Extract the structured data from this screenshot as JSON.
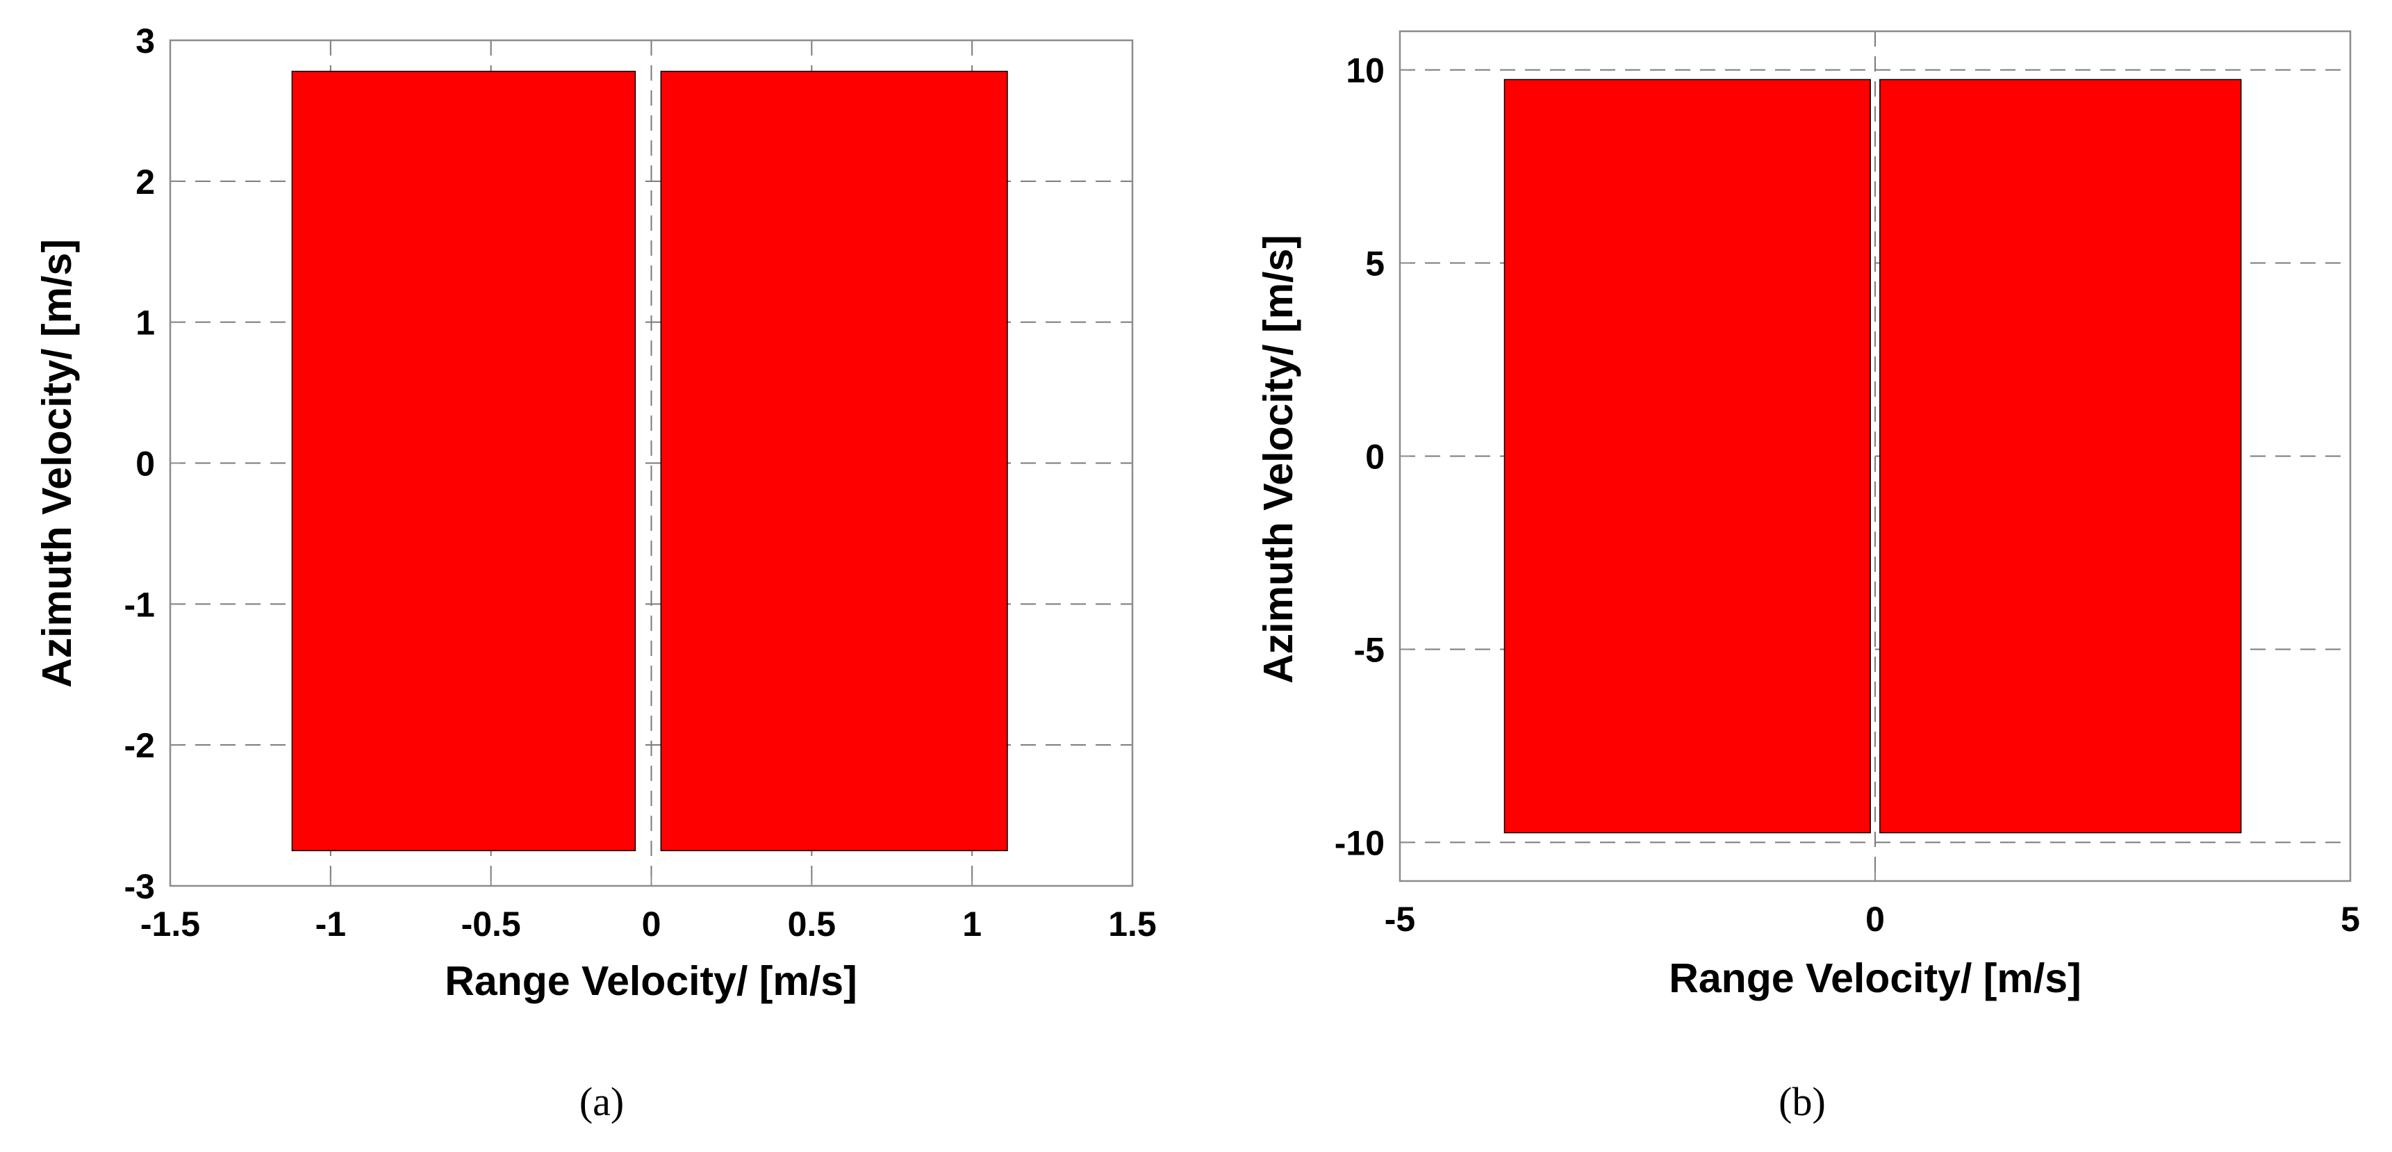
{
  "chart_data": [
    {
      "type": "bar",
      "panel": "(a)",
      "caption": "(a)",
      "xlabel": "Range Velocity/ [m/s]",
      "ylabel": "Azimuth Velocity/ [m/s]",
      "xlim": [
        -1.5,
        1.5
      ],
      "ylim": [
        -3,
        3
      ],
      "xticks": [
        -1.5,
        -1,
        -0.5,
        0,
        0.5,
        1,
        1.5
      ],
      "xtick_labels": [
        "-1.5",
        "-1",
        "-0.5",
        "0",
        "0.5",
        "1",
        "1.5"
      ],
      "yticks": [
        -3,
        -2,
        -1,
        0,
        1,
        2,
        3
      ],
      "ytick_labels": [
        "-3",
        "-2",
        "-1",
        "0",
        "1",
        "2",
        "3"
      ],
      "grid": "dashed",
      "rectangles": [
        {
          "x0": -1.12,
          "x1": -0.05,
          "y0": -2.75,
          "y1": 2.78,
          "color": "#ff0000"
        },
        {
          "x0": 0.03,
          "x1": 1.11,
          "y0": -2.75,
          "y1": 2.78,
          "color": "#ff0000"
        }
      ]
    },
    {
      "type": "bar",
      "panel": "(b)",
      "caption": "(b)",
      "xlabel": "Range Velocity/ [m/s]",
      "ylabel": "Azimuth Velocity/ [m/s]",
      "xlim": [
        -5,
        5
      ],
      "ylim": [
        -11,
        11
      ],
      "xticks": [
        -5,
        0,
        5
      ],
      "xtick_labels": [
        "-5",
        "0",
        "5"
      ],
      "yticks": [
        -10,
        -5,
        0,
        5,
        10
      ],
      "ytick_labels": [
        "-10",
        "-5",
        "0",
        "5",
        "10"
      ],
      "grid": "dashed",
      "rectangles": [
        {
          "x0": -3.9,
          "x1": -0.05,
          "y0": -9.75,
          "y1": 9.75,
          "color": "#ff0000"
        },
        {
          "x0": 0.05,
          "x1": 3.85,
          "y0": -9.75,
          "y1": 9.75,
          "color": "#ff0000"
        }
      ]
    }
  ]
}
